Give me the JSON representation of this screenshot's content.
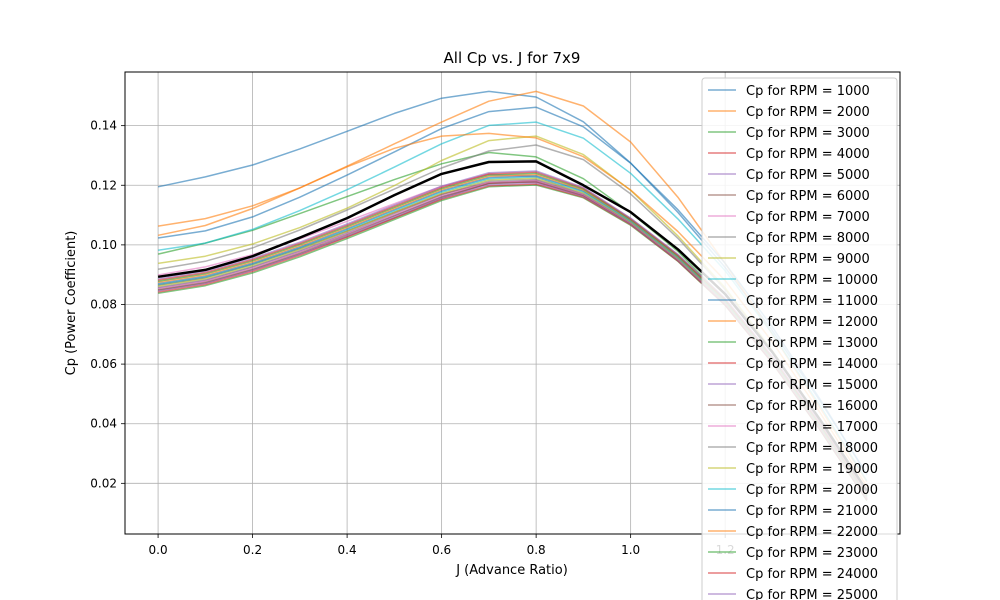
{
  "chart_data": {
    "type": "line",
    "title": "All Cp vs. J for 7x9",
    "xlabel": "J (Advance Ratio)",
    "ylabel": "Cp (Power Coefficient)",
    "xlim": [
      -0.07,
      1.57
    ],
    "ylim": [
      0.003,
      0.158
    ],
    "x_ticks": [
      "0.0",
      "0.2",
      "0.4",
      "0.6",
      "0.8",
      "1.0",
      "1.2"
    ],
    "y_ticks": [
      "0.02",
      "0.04",
      "0.06",
      "0.08",
      "0.10",
      "0.12",
      "0.14"
    ],
    "grid": true,
    "legend_position": "top-right",
    "x": [
      0.0,
      0.1,
      0.2,
      0.3,
      0.4,
      0.5,
      0.6,
      0.7,
      0.8,
      0.9,
      1.0,
      1.1,
      1.2,
      1.3,
      1.4,
      1.5
    ],
    "series": [
      {
        "name": "Cp for RPM = 1000",
        "color": "#1f77b4",
        "values": [
          0.1195,
          0.1228,
          0.1268,
          0.1322,
          0.1381,
          0.1441,
          0.1492,
          0.1515,
          0.1496,
          0.1413,
          0.1275,
          0.1109,
          0.0924,
          0.0712,
          0.0478,
          0.0232
        ]
      },
      {
        "name": "Cp for RPM = 2000",
        "color": "#ff7f0e",
        "values": [
          0.1063,
          0.1088,
          0.1131,
          0.1191,
          0.1264,
          0.1339,
          0.1412,
          0.1482,
          0.1515,
          0.1466,
          0.1345,
          0.116,
          0.0938,
          0.07,
          0.0455,
          0.0205
        ]
      },
      {
        "name": "Cp for RPM = 3000",
        "color": "#2ca02c",
        "values": [
          0.0969,
          0.1006,
          0.1049,
          0.1105,
          0.1162,
          0.1219,
          0.1272,
          0.131,
          0.1295,
          0.1222,
          0.1108,
          0.0978,
          0.0816,
          0.0608,
          0.0382,
          0.0142
        ]
      },
      {
        "name": "Cp for RPM = 4000",
        "color": "#d62728",
        "values": [
          0.0865,
          0.089,
          0.0935,
          0.0988,
          0.1047,
          0.1109,
          0.117,
          0.1209,
          0.1211,
          0.1164,
          0.107,
          0.0947,
          0.0799,
          0.0605,
          0.0383,
          0.0145
        ]
      },
      {
        "name": "Cp for RPM = 5000",
        "color": "#9467bd",
        "values": [
          0.0855,
          0.088,
          0.0925,
          0.0978,
          0.1037,
          0.1099,
          0.1162,
          0.1207,
          0.1213,
          0.1166,
          0.1072,
          0.0949,
          0.0801,
          0.0607,
          0.0385,
          0.0147
        ]
      },
      {
        "name": "Cp for RPM = 6000",
        "color": "#8c564b",
        "values": [
          0.0848,
          0.0872,
          0.0916,
          0.0969,
          0.1028,
          0.1091,
          0.1156,
          0.1207,
          0.1217,
          0.1168,
          0.1074,
          0.0951,
          0.0803,
          0.0609,
          0.0387,
          0.0149
        ]
      },
      {
        "name": "Cp for RPM = 7000",
        "color": "#e377c2",
        "values": [
          0.0899,
          0.0926,
          0.0967,
          0.102,
          0.1079,
          0.1138,
          0.1197,
          0.1237,
          0.1229,
          0.1168,
          0.1072,
          0.095,
          0.0801,
          0.0607,
          0.0385,
          0.0147
        ]
      },
      {
        "name": "Cp for RPM = 8000",
        "color": "#7f7f7f",
        "values": [
          0.0918,
          0.0945,
          0.099,
          0.105,
          0.1117,
          0.1187,
          0.1258,
          0.1315,
          0.1335,
          0.1286,
          0.1171,
          0.1022,
          0.085,
          0.0641,
          0.0409,
          0.0165
        ]
      },
      {
        "name": "Cp for RPM = 9000",
        "color": "#bcbd22",
        "values": [
          0.0938,
          0.0962,
          0.1003,
          0.1058,
          0.1123,
          0.1199,
          0.1283,
          0.135,
          0.1365,
          0.1303,
          0.1183,
          0.103,
          0.0856,
          0.0645,
          0.0412,
          0.0168
        ]
      },
      {
        "name": "Cp for RPM = 10000",
        "color": "#17becf",
        "values": [
          0.0982,
          0.1006,
          0.1052,
          0.1115,
          0.1185,
          0.1261,
          0.1339,
          0.1401,
          0.1412,
          0.1358,
          0.124,
          0.1087,
          0.0913,
          0.0702,
          0.0463,
          0.0208
        ]
      },
      {
        "name": "Cp for RPM = 11000",
        "color": "#1f77b4",
        "values": [
          0.1023,
          0.1047,
          0.1094,
          0.116,
          0.1234,
          0.1312,
          0.139,
          0.1447,
          0.1462,
          0.1396,
          0.1274,
          0.1118,
          0.0938,
          0.0724,
          0.0484,
          0.0228
        ]
      },
      {
        "name": "Cp for RPM = 12000",
        "color": "#ff7f0e",
        "values": [
          0.1032,
          0.1065,
          0.1122,
          0.1191,
          0.1262,
          0.1324,
          0.1365,
          0.1374,
          0.1359,
          0.1296,
          0.1184,
          0.1045,
          0.088,
          0.0674,
          0.0439,
          0.0189
        ]
      },
      {
        "name": "Cp for RPM = 13000",
        "color": "#2ca02c",
        "values": [
          0.0838,
          0.0863,
          0.0906,
          0.096,
          0.1021,
          0.1085,
          0.1149,
          0.1195,
          0.1201,
          0.1158,
          0.1066,
          0.0945,
          0.0797,
          0.0603,
          0.0381,
          0.0143
        ]
      },
      {
        "name": "Cp for RPM = 14000",
        "color": "#d62728",
        "values": [
          0.0842,
          0.0867,
          0.0911,
          0.0965,
          0.1026,
          0.109,
          0.1153,
          0.1198,
          0.1204,
          0.116,
          0.1068,
          0.0946,
          0.0798,
          0.0604,
          0.0382,
          0.0144
        ]
      },
      {
        "name": "Cp for RPM = 15000",
        "color": "#9467bd",
        "values": [
          0.0846,
          0.0871,
          0.0915,
          0.0969,
          0.103,
          0.1094,
          0.1157,
          0.1202,
          0.1208,
          0.1163,
          0.107,
          0.0948,
          0.08,
          0.0606,
          0.0384,
          0.0146
        ]
      },
      {
        "name": "Cp for RPM = 16000",
        "color": "#8c564b",
        "values": [
          0.085,
          0.0875,
          0.0919,
          0.0973,
          0.1034,
          0.1098,
          0.1161,
          0.1206,
          0.1212,
          0.1166,
          0.1072,
          0.095,
          0.0802,
          0.0608,
          0.0386,
          0.0148
        ]
      },
      {
        "name": "Cp for RPM = 17000",
        "color": "#e377c2",
        "values": [
          0.0854,
          0.0879,
          0.0923,
          0.0977,
          0.1038,
          0.1102,
          0.1165,
          0.121,
          0.1216,
          0.1169,
          0.1074,
          0.0952,
          0.0804,
          0.061,
          0.0388,
          0.015
        ]
      },
      {
        "name": "Cp for RPM = 18000",
        "color": "#7f7f7f",
        "values": [
          0.0858,
          0.0883,
          0.0927,
          0.0981,
          0.1042,
          0.1106,
          0.1169,
          0.1214,
          0.122,
          0.1172,
          0.1076,
          0.0954,
          0.0806,
          0.0612,
          0.039,
          0.0152
        ]
      },
      {
        "name": "Cp for RPM = 19000",
        "color": "#bcbd22",
        "values": [
          0.0862,
          0.0887,
          0.0931,
          0.0985,
          0.1046,
          0.111,
          0.1173,
          0.1218,
          0.1224,
          0.1175,
          0.1078,
          0.0956,
          0.0808,
          0.0614,
          0.0392,
          0.0154
        ]
      },
      {
        "name": "Cp for RPM = 20000",
        "color": "#17becf",
        "values": [
          0.0866,
          0.0891,
          0.0935,
          0.0989,
          0.105,
          0.1114,
          0.1177,
          0.1222,
          0.1228,
          0.1178,
          0.108,
          0.0958,
          0.081,
          0.0616,
          0.0394,
          0.0156
        ]
      },
      {
        "name": "Cp for RPM = 21000",
        "color": "#1f77b4",
        "values": [
          0.087,
          0.0895,
          0.0939,
          0.0993,
          0.1054,
          0.1118,
          0.1181,
          0.1226,
          0.1232,
          0.1181,
          0.1082,
          0.096,
          0.0812,
          0.0618,
          0.0396,
          0.0158
        ]
      },
      {
        "name": "Cp for RPM = 22000",
        "color": "#ff7f0e",
        "values": [
          0.0874,
          0.0899,
          0.0943,
          0.0997,
          0.1058,
          0.1122,
          0.1185,
          0.123,
          0.1236,
          0.1184,
          0.1084,
          0.0962,
          0.0814,
          0.062,
          0.0398,
          0.016
        ]
      },
      {
        "name": "Cp for RPM = 23000",
        "color": "#2ca02c",
        "values": [
          0.0878,
          0.0903,
          0.0947,
          0.1001,
          0.1062,
          0.1126,
          0.1189,
          0.1234,
          0.124,
          0.1187,
          0.1086,
          0.0964,
          0.0816,
          0.0622,
          0.04,
          0.0162
        ]
      },
      {
        "name": "Cp for RPM = 24000",
        "color": "#d62728",
        "values": [
          0.0882,
          0.0907,
          0.0951,
          0.1005,
          0.1066,
          0.113,
          0.1193,
          0.1238,
          0.1244,
          0.119,
          0.1088,
          0.0966,
          0.0818,
          0.0624,
          0.0402,
          0.0164
        ]
      },
      {
        "name": "Cp for RPM = 25000",
        "color": "#9467bd",
        "values": [
          0.0886,
          0.0911,
          0.0955,
          0.1009,
          0.107,
          0.1134,
          0.1197,
          0.1242,
          0.1248,
          0.1193,
          0.109,
          0.0968,
          0.082,
          0.0626,
          0.0404,
          0.0166
        ]
      }
    ],
    "mean_line": {
      "color": "#000000",
      "values": [
        0.0893,
        0.0916,
        0.0962,
        0.1024,
        0.109,
        0.1167,
        0.1238,
        0.1278,
        0.128,
        0.12,
        0.111,
        0.0985,
        0.0835,
        0.064,
        0.0415,
        0.0175
      ]
    }
  }
}
